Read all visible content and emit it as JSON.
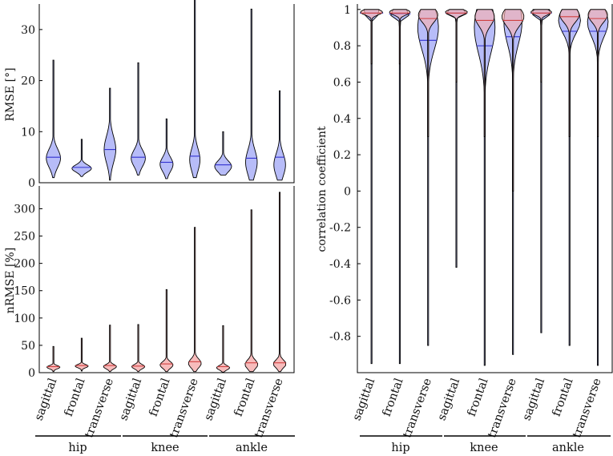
{
  "colors": {
    "blue": "#aab0f7",
    "blue_line": "#3030d0",
    "red": "#f6b0b0",
    "red_line": "#d04040",
    "outline": "#000000"
  },
  "chart_data": [
    {
      "id": "rmse",
      "type": "violin",
      "ylabel": "RMSE [°]",
      "ylim": [
        0,
        35
      ],
      "yticks": [
        0,
        10,
        20,
        30
      ],
      "categories": [
        "sagittal",
        "frontal",
        "transverse",
        "sagittal",
        "frontal",
        "transverse",
        "sagittal",
        "frontal",
        "transverse"
      ],
      "series": [
        {
          "name": "RMSE",
          "color": "blue",
          "violins": [
            {
              "min": 1.0,
              "max": 24.0,
              "median": 5.0,
              "mode": 4.8,
              "width": 0.55,
              "spread": 1.8
            },
            {
              "min": 1.2,
              "max": 8.5,
              "median": 3.0,
              "mode": 2.8,
              "width": 0.75,
              "spread": 0.7
            },
            {
              "min": 0.5,
              "max": 18.5,
              "median": 6.5,
              "mode": 6.5,
              "width": 0.45,
              "spread": 2.6
            },
            {
              "min": 1.5,
              "max": 23.5,
              "median": 5.0,
              "mode": 4.8,
              "width": 0.55,
              "spread": 1.6
            },
            {
              "min": 0.8,
              "max": 12.5,
              "median": 4.0,
              "mode": 3.6,
              "width": 0.5,
              "spread": 1.4
            },
            {
              "min": 1.0,
              "max": 36.0,
              "median": 5.2,
              "mode": 4.5,
              "width": 0.4,
              "spread": 2.2
            },
            {
              "min": 1.5,
              "max": 10.0,
              "median": 3.5,
              "mode": 3.2,
              "width": 0.65,
              "spread": 1.1
            },
            {
              "min": 0.5,
              "max": 34.0,
              "median": 4.8,
              "mode": 4.0,
              "width": 0.45,
              "spread": 2.4
            },
            {
              "min": 0.5,
              "max": 18.0,
              "median": 5.0,
              "mode": 3.5,
              "width": 0.45,
              "spread": 2.2
            }
          ]
        }
      ]
    },
    {
      "id": "nrmse",
      "type": "violin",
      "ylabel": "nRMSE [%]",
      "ylim": [
        0,
        330
      ],
      "yticks": [
        0,
        50,
        100,
        150,
        200,
        250,
        300
      ],
      "categories": [
        "sagittal",
        "frontal",
        "transverse",
        "sagittal",
        "frontal",
        "transverse",
        "sagittal",
        "frontal",
        "transverse"
      ],
      "series": [
        {
          "name": "nRMSE",
          "color": "red",
          "violins": [
            {
              "min": 2,
              "max": 48,
              "median": 11,
              "mode": 10,
              "width": 0.5,
              "spread": 3
            },
            {
              "min": 3,
              "max": 63,
              "median": 13,
              "mode": 12,
              "width": 0.5,
              "spread": 3
            },
            {
              "min": 2,
              "max": 87,
              "median": 13,
              "mode": 11,
              "width": 0.5,
              "spread": 4
            },
            {
              "min": 2,
              "max": 88,
              "median": 12,
              "mode": 11,
              "width": 0.5,
              "spread": 4
            },
            {
              "min": 2,
              "max": 152,
              "median": 16,
              "mode": 14,
              "width": 0.5,
              "spread": 6
            },
            {
              "min": 2,
              "max": 266,
              "median": 20,
              "mode": 17,
              "width": 0.5,
              "spread": 8
            },
            {
              "min": 1,
              "max": 86,
              "median": 11,
              "mode": 9,
              "width": 0.5,
              "spread": 4
            },
            {
              "min": 2,
              "max": 298,
              "median": 18,
              "mode": 15,
              "width": 0.5,
              "spread": 8
            },
            {
              "min": 2,
              "max": 330,
              "median": 18,
              "mode": 16,
              "width": 0.5,
              "spread": 7
            }
          ]
        }
      ]
    },
    {
      "id": "corr",
      "type": "violin",
      "ylabel": "correlation coefficient",
      "ylim": [
        -1.0,
        1.03
      ],
      "yticks": [
        1,
        0.8,
        0.6,
        0.4,
        0.2,
        0,
        -0.2,
        -0.4,
        -0.6,
        -0.8
      ],
      "ytick_labels": [
        "1",
        "0.8",
        "0.6",
        "0.4",
        "0.2",
        "0",
        "-0.2",
        "-0.4",
        "-0.6",
        "-0.8"
      ],
      "categories": [
        "sagittal",
        "frontal",
        "transverse",
        "sagittal",
        "frontal",
        "transverse",
        "sagittal",
        "frontal",
        "transverse"
      ],
      "series": [
        {
          "name": "blue",
          "color": "blue",
          "violins": [
            {
              "min": -0.95,
              "max": 1.0,
              "median": 0.98,
              "mode": 0.985,
              "width": 0.95,
              "spread": 0.015
            },
            {
              "min": -0.95,
              "max": 1.0,
              "median": 0.975,
              "mode": 0.98,
              "width": 0.85,
              "spread": 0.02
            },
            {
              "min": -0.85,
              "max": 1.0,
              "median": 0.83,
              "mode": 0.9,
              "width": 0.8,
              "spread": 0.12
            },
            {
              "min": -0.42,
              "max": 1.0,
              "median": 0.98,
              "mode": 0.985,
              "width": 0.9,
              "spread": 0.015
            },
            {
              "min": -0.96,
              "max": 1.0,
              "median": 0.8,
              "mode": 0.9,
              "width": 0.8,
              "spread": 0.14
            },
            {
              "min": -0.9,
              "max": 1.0,
              "median": 0.85,
              "mode": 0.93,
              "width": 0.7,
              "spread": 0.12
            },
            {
              "min": -0.78,
              "max": 1.0,
              "median": 0.98,
              "mode": 0.985,
              "width": 0.85,
              "spread": 0.02
            },
            {
              "min": -0.85,
              "max": 1.0,
              "median": 0.88,
              "mode": 0.94,
              "width": 0.85,
              "spread": 0.07
            },
            {
              "min": -0.96,
              "max": 1.0,
              "median": 0.88,
              "mode": 0.93,
              "width": 0.8,
              "spread": 0.08
            }
          ]
        },
        {
          "name": "red",
          "color": "red",
          "violins": [
            {
              "min": 0.7,
              "max": 1.0,
              "median": 0.98,
              "mode": 0.985,
              "width": 0.85,
              "spread": 0.015
            },
            {
              "min": 0.7,
              "max": 1.0,
              "median": 0.98,
              "mode": 0.985,
              "width": 0.8,
              "spread": 0.015
            },
            {
              "min": 0.3,
              "max": 1.0,
              "median": 0.95,
              "mode": 0.97,
              "width": 0.75,
              "spread": 0.04
            },
            {
              "min": 0.6,
              "max": 1.0,
              "median": 0.98,
              "mode": 0.985,
              "width": 0.85,
              "spread": 0.015
            },
            {
              "min": 0.3,
              "max": 1.0,
              "median": 0.94,
              "mode": 0.96,
              "width": 0.75,
              "spread": 0.05
            },
            {
              "min": 0.0,
              "max": 1.0,
              "median": 0.94,
              "mode": 0.96,
              "width": 0.85,
              "spread": 0.05
            },
            {
              "min": 0.6,
              "max": 1.0,
              "median": 0.98,
              "mode": 0.985,
              "width": 0.8,
              "spread": 0.015
            },
            {
              "min": 0.3,
              "max": 1.0,
              "median": 0.96,
              "mode": 0.97,
              "width": 0.75,
              "spread": 0.04
            },
            {
              "min": 0.3,
              "max": 1.0,
              "median": 0.95,
              "mode": 0.97,
              "width": 0.75,
              "spread": 0.04
            }
          ]
        }
      ]
    }
  ],
  "groups": [
    "hip",
    "knee",
    "ankle"
  ]
}
